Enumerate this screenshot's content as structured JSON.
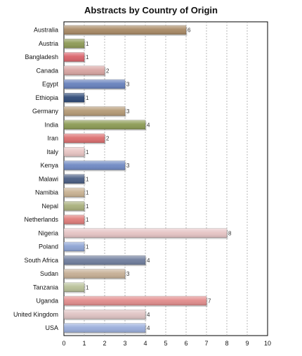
{
  "chart_data": {
    "type": "bar",
    "orientation": "horizontal",
    "title": "Abstracts by Country of Origin",
    "xlabel": "",
    "ylabel": "",
    "xlim": [
      0,
      10
    ],
    "x_ticks": [
      "0",
      "1",
      "2",
      "3",
      "4",
      "5",
      "6",
      "7",
      "8",
      "9",
      "10"
    ],
    "grid": true,
    "legend": "none",
    "categories": [
      "Australia",
      "Austria",
      "Bangladesh",
      "Canada",
      "Egypt",
      "Ethiopia",
      "Germany",
      "India",
      "Iran",
      "Italy",
      "Kenya",
      "Malawi",
      "Namibia",
      "Nepal",
      "Netherlands",
      "Nigeria",
      "Poland",
      "South Africa",
      "Sudan",
      "Tanzania",
      "Uganda",
      "United Kingdom",
      "USA"
    ],
    "values": [
      6,
      1,
      1,
      2,
      3,
      1,
      3,
      4,
      2,
      1,
      3,
      1,
      1,
      1,
      1,
      8,
      1,
      4,
      3,
      1,
      7,
      4,
      4
    ],
    "value_labels": [
      "6",
      "1",
      "1",
      "2",
      "3",
      "1",
      "3",
      "4",
      "2",
      "1",
      "3",
      "1",
      "1",
      "1",
      "1",
      "8",
      "1",
      "4",
      "3",
      "1",
      "7",
      "4",
      "4"
    ],
    "bar_colors": [
      "#a98a66",
      "#8e9a56",
      "#d9636b",
      "#d8a5a2",
      "#6781bd",
      "#2f4a78",
      "#b59a76",
      "#8c9b54",
      "#dc6f70",
      "#e8c5c4",
      "#708ac4",
      "#4a5e84",
      "#c9b292",
      "#a9b07c",
      "#e07d7b",
      "#e6c4c5",
      "#8ea4d4",
      "#707e9e",
      "#c6af95",
      "#b8c098",
      "#e28d8d",
      "#e0c4c4",
      "#9aaedb"
    ]
  }
}
